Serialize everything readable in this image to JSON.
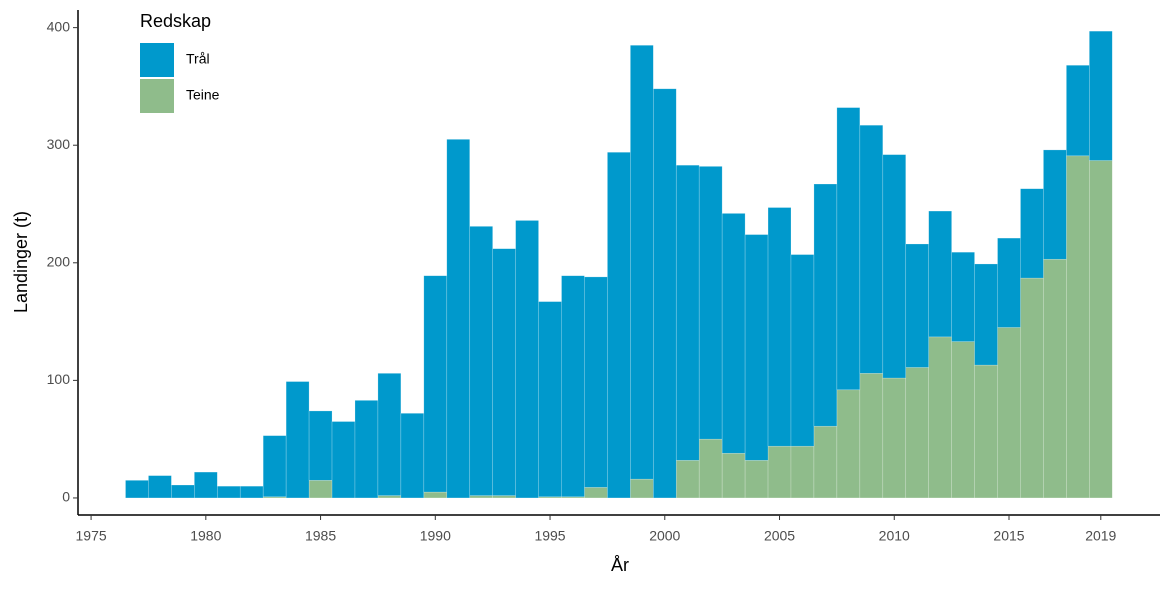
{
  "chart_data": {
    "type": "stacked_bar",
    "x_label": "År",
    "y_label": "Landinger (t)",
    "legend_title": "Redskap",
    "x": [
      1977,
      1978,
      1979,
      1980,
      1981,
      1982,
      1983,
      1984,
      1985,
      1986,
      1987,
      1988,
      1989,
      1990,
      1991,
      1992,
      1993,
      1994,
      1995,
      1996,
      1997,
      1998,
      1999,
      2000,
      2001,
      2002,
      2003,
      2004,
      2005,
      2006,
      2007,
      2008,
      2009,
      2010,
      2011,
      2012,
      2013,
      2014,
      2015,
      2016,
      2017,
      2018,
      2019
    ],
    "series": [
      {
        "name": "Teine",
        "color": "#8fbc8b",
        "values": [
          0,
          0,
          0,
          0,
          0,
          0,
          1,
          0,
          15,
          0,
          0,
          2,
          0,
          5,
          0,
          2,
          2,
          0,
          1,
          1,
          9,
          0,
          16,
          0,
          32,
          50,
          38,
          32,
          44,
          44,
          61,
          92,
          106,
          102,
          111,
          137,
          133,
          113,
          145,
          187,
          203,
          291,
          287
        ]
      },
      {
        "name": "Trål",
        "color": "#0099cc",
        "values": [
          15,
          19,
          11,
          22,
          10,
          10,
          52,
          99,
          59,
          65,
          83,
          104,
          72,
          184,
          305,
          229,
          210,
          236,
          166,
          188,
          179,
          294,
          369,
          348,
          251,
          232,
          204,
          192,
          203,
          163,
          206,
          240,
          211,
          190,
          105,
          107,
          76,
          86,
          76,
          76,
          93,
          77,
          110
        ]
      }
    ],
    "xlim": [
      1974.43,
      2021.58
    ],
    "xticks": [
      1975,
      1980,
      1985,
      1990,
      1995,
      2000,
      2005,
      2010,
      2015,
      2019
    ],
    "ylim": [
      -14.5,
      415
    ],
    "yticks": [
      0,
      100,
      200,
      300,
      400
    ]
  }
}
